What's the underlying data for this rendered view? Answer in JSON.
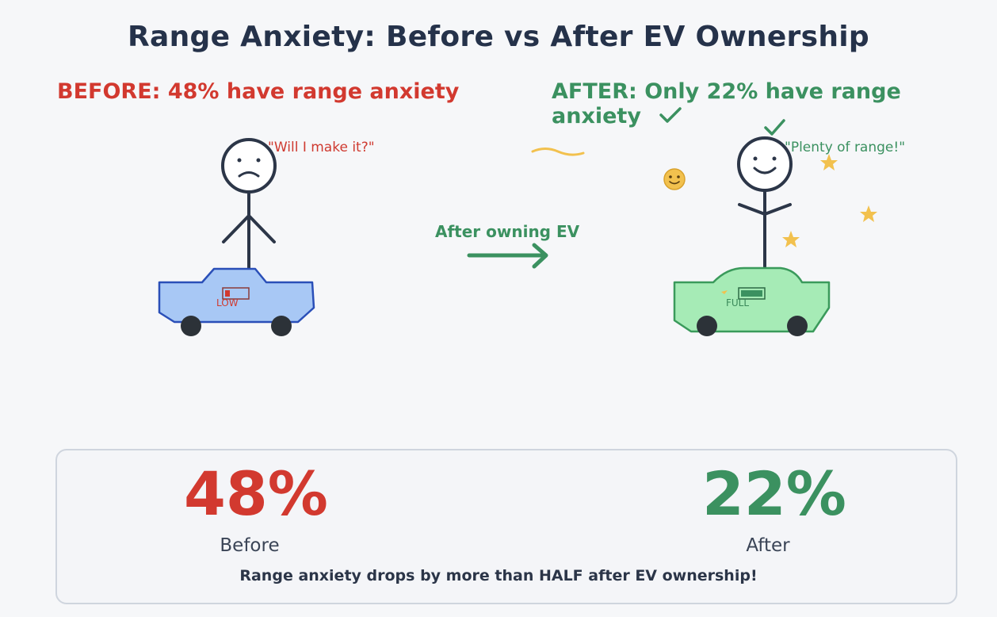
{
  "title": "Range Anxiety: Before vs After EV Ownership",
  "before": {
    "heading": "BEFORE: 48% have range anxiety",
    "quote": "\"Will I make it?\"",
    "battery_label": "LOW",
    "percent": "48%",
    "label": "Before"
  },
  "after": {
    "heading": "AFTER: Only 22% have range anxiety",
    "quote": "\"Plenty of range!\"",
    "battery_label": "FULL",
    "percent": "22%",
    "label": "After"
  },
  "transition_label": "After owning EV",
  "summary_note": "Range anxiety drops by more than HALF after EV ownership!",
  "colors": {
    "before": "#d2392f",
    "after": "#3b9160",
    "ink": "#2b3548",
    "star": "#f2c14e"
  },
  "icons": [
    "sad-face-icon",
    "happy-face-icon",
    "checkmark-icon",
    "star-icon",
    "smiley-emoji-icon",
    "arrow-right-icon"
  ]
}
